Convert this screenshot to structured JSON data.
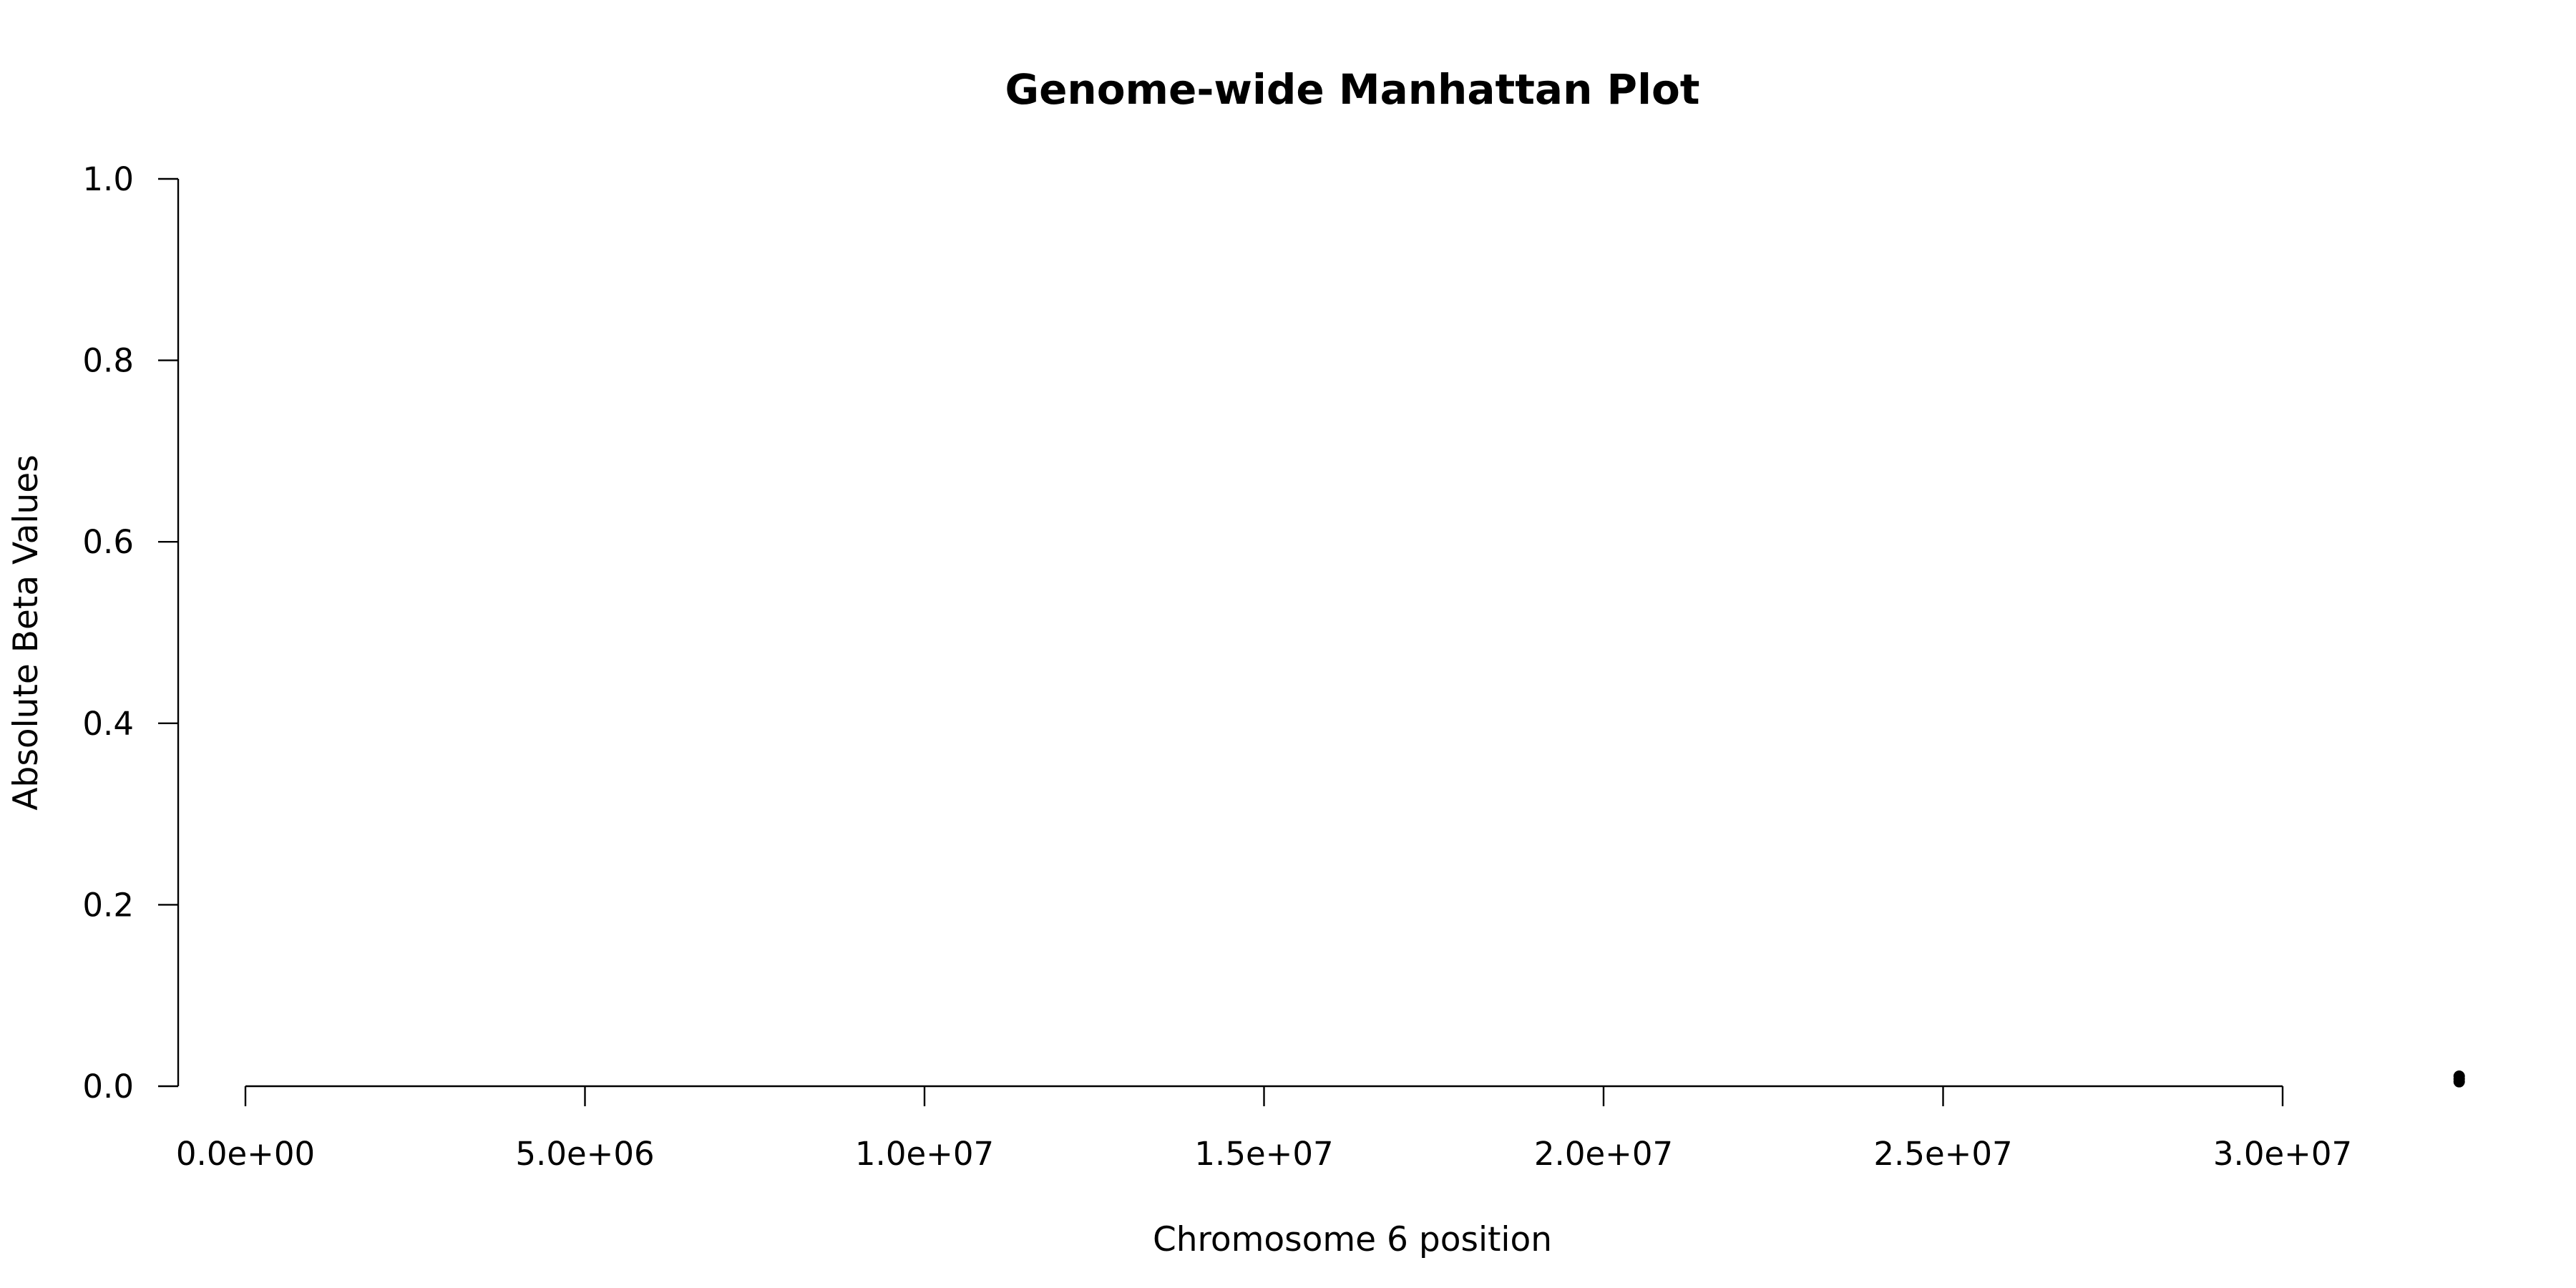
{
  "chart_data": {
    "type": "scatter",
    "title": "Genome-wide Manhattan Plot",
    "xlabel": "Chromosome 6 position",
    "ylabel": "Absolute Beta Values",
    "xlim": [
      0,
      30000000
    ],
    "ylim": [
      0,
      1.0
    ],
    "x_ticks": [
      0,
      5000000,
      10000000,
      15000000,
      20000000,
      25000000,
      30000000
    ],
    "x_tick_labels": [
      "0.0e+00",
      "5.0e+06",
      "1.0e+07",
      "1.5e+07",
      "2.0e+07",
      "2.5e+07",
      "3.0e+07"
    ],
    "y_ticks": [
      0.0,
      0.2,
      0.4,
      0.6,
      0.8,
      1.0
    ],
    "y_tick_labels": [
      "0.0",
      "0.2",
      "0.4",
      "0.6",
      "0.8",
      "1.0"
    ],
    "grid": false,
    "point_color": "#000000",
    "series": [
      {
        "x": [
          32600000,
          32600000,
          32600000
        ],
        "y": [
          0.011,
          0.008,
          0.005
        ]
      }
    ]
  }
}
